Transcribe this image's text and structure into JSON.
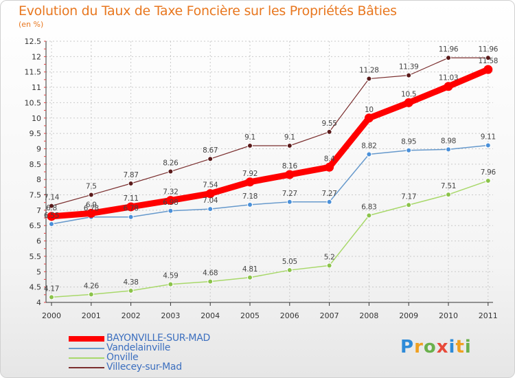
{
  "title": "Evolution du Taux de Taxe Foncière sur les Propriétés Bâties",
  "subtitle": "(en %)",
  "logo": [
    "P",
    "r",
    "o",
    "x",
    "i",
    "t",
    "i"
  ],
  "colors": {
    "title": "#e8771f",
    "grid": "#c9c9c9",
    "axis": "#333333",
    "legend_text": "#3c6fbf"
  },
  "chart_data": {
    "type": "line",
    "x": [
      "2000",
      "2001",
      "2002",
      "2003",
      "2004",
      "2005",
      "2006",
      "2007",
      "2008",
      "2009",
      "2010",
      "2011"
    ],
    "ylim": [
      4,
      12.5
    ],
    "yticks": [
      "4",
      "4.5",
      "5",
      "5.5",
      "6",
      "6.5",
      "7",
      "7.5",
      "8",
      "8.5",
      "9",
      "9.5",
      "10",
      "10.5",
      "11",
      "11.5",
      "12",
      "12.5"
    ],
    "grid": true,
    "legend": "bottom-left",
    "series": [
      {
        "name": "BAYONVILLE-SUR-MAD",
        "color": "#ff0000",
        "marker": "#ff0000",
        "width": 9,
        "r": 6.5,
        "values": [
          6.8,
          6.9,
          7.11,
          7.32,
          7.54,
          7.92,
          8.16,
          8.4,
          10,
          10.5,
          11.03,
          11.58
        ],
        "labels": [
          "6.8",
          "6.9",
          "7.11",
          "7.32",
          "7.54",
          "7.92",
          "8.16",
          "8.4",
          "10",
          "10.5",
          "11.03",
          "11.58"
        ]
      },
      {
        "name": "Vandelainville",
        "color": "#6699cc",
        "marker": "#4a90d9",
        "width": 1.5,
        "r": 3.5,
        "values": [
          6.55,
          6.78,
          6.78,
          6.98,
          7.04,
          7.18,
          7.27,
          7.27,
          8.82,
          8.95,
          8.98,
          9.11
        ],
        "labels": [
          "6.55",
          "6.78",
          "6.78",
          "6.98",
          "7.04",
          "7.18",
          "7.27",
          "7.27",
          "8.82",
          "8.95",
          "8.98",
          "9.11"
        ]
      },
      {
        "name": "Onville",
        "color": "#a8d86a",
        "marker": "#8bc34a",
        "width": 1.5,
        "r": 3.5,
        "values": [
          4.17,
          4.26,
          4.38,
          4.59,
          4.68,
          4.81,
          5.05,
          5.2,
          6.83,
          7.17,
          7.51,
          7.96
        ],
        "labels": [
          "4.17",
          "4.26",
          "4.38",
          "4.59",
          "4.68",
          "4.81",
          "5.05",
          "5.2",
          "6.83",
          "7.17",
          "7.51",
          "7.96"
        ]
      },
      {
        "name": "Villecey-sur-Mad",
        "color": "#7a2e2e",
        "marker": "#5a1a1a",
        "width": 1.2,
        "r": 3.5,
        "values": [
          7.14,
          7.5,
          7.87,
          8.26,
          8.67,
          9.1,
          9.1,
          9.55,
          11.28,
          11.39,
          11.96,
          11.96
        ],
        "labels": [
          "7.14",
          "7.5",
          "7.87",
          "8.26",
          "8.67",
          "9.1",
          "9.1",
          "9.55",
          "11.28",
          "11.39",
          "11.96",
          "11.96"
        ]
      }
    ]
  }
}
